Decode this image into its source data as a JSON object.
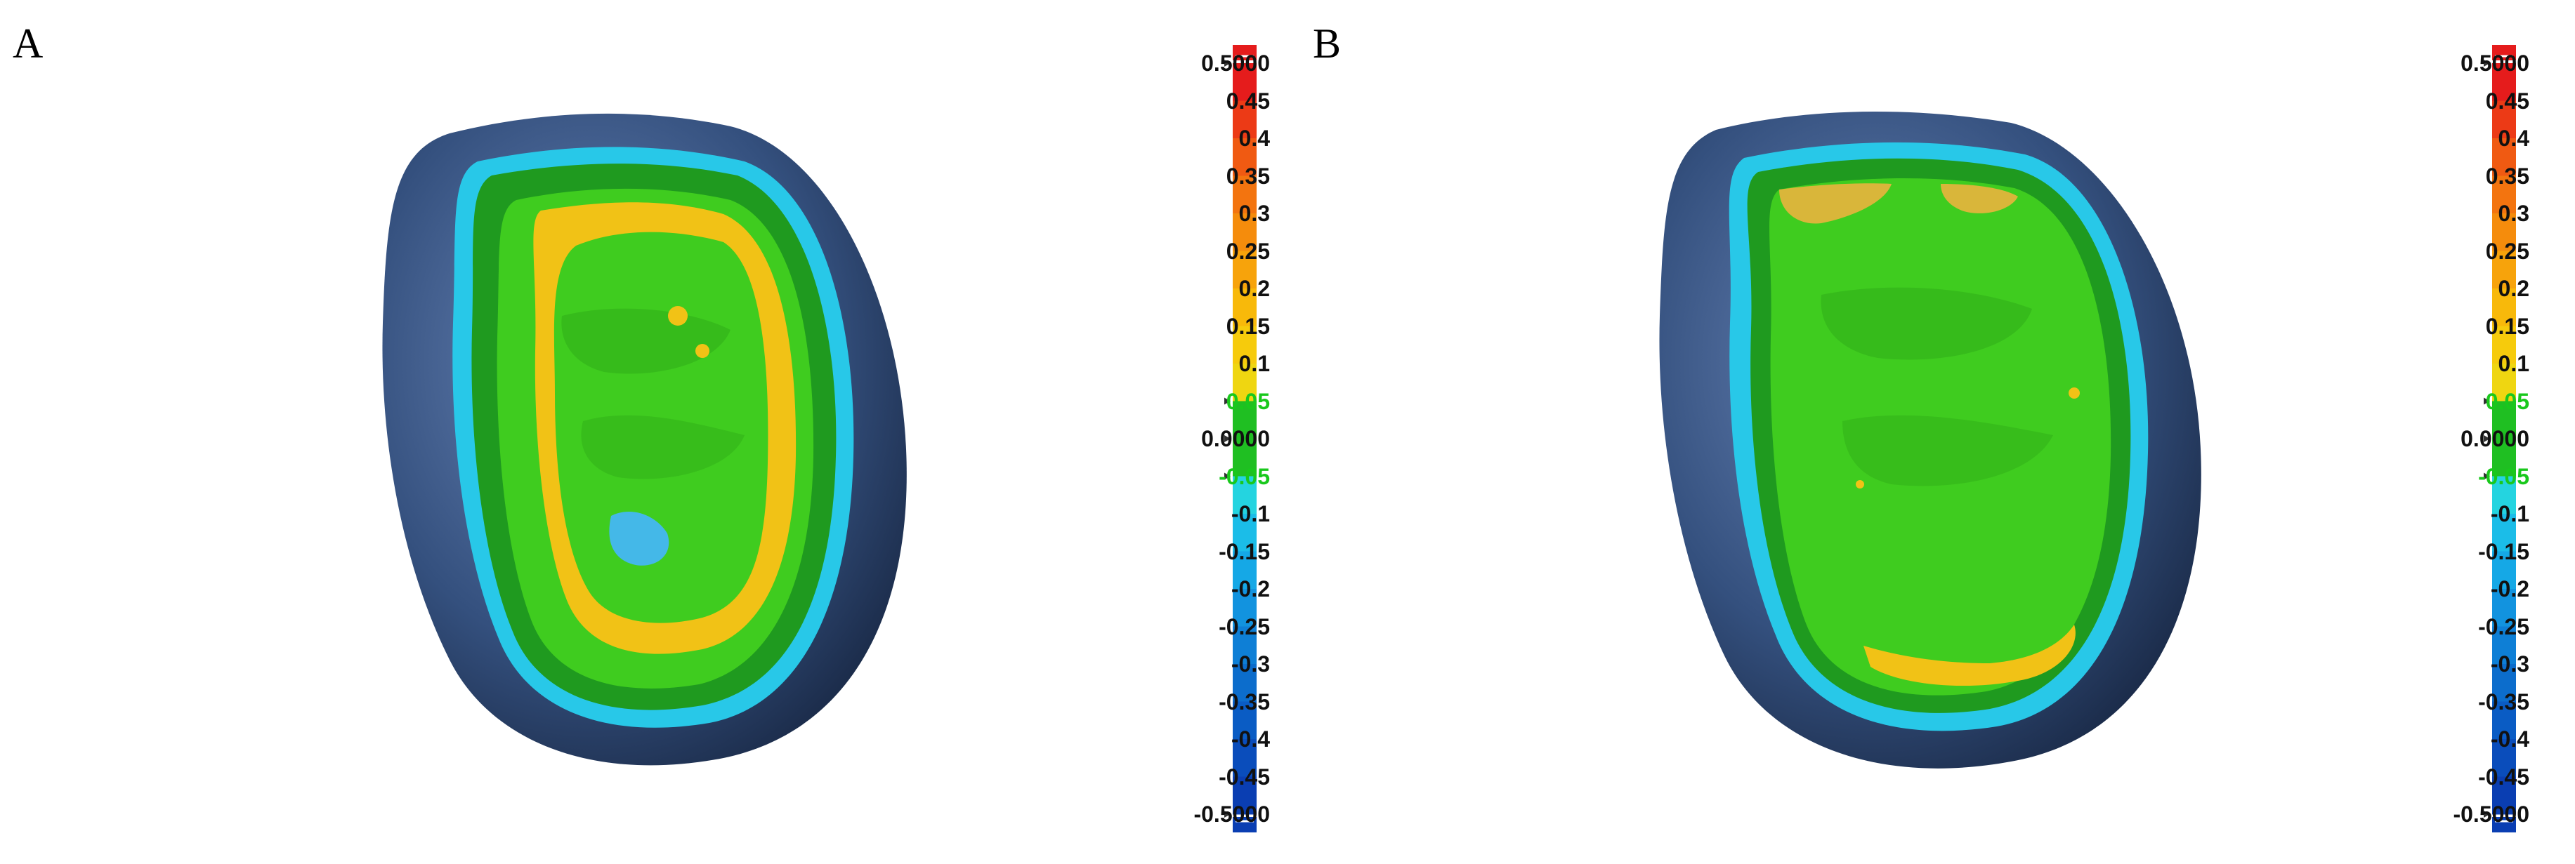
{
  "panels": [
    {
      "label": "A"
    },
    {
      "label": "B"
    }
  ],
  "color_scale": {
    "ticks": [
      "0.5000",
      "0.45",
      "0.4",
      "0.35",
      "0.3",
      "0.25",
      "0.2",
      "0.15",
      "0.1",
      "0.05",
      "0.0000",
      "-0.05",
      "-0.1",
      "-0.15",
      "-0.2",
      "-0.25",
      "-0.3",
      "-0.35",
      "-0.4",
      "-0.45",
      "-0.5000"
    ],
    "highlighted_ticks": [
      "0.05",
      "-0.05"
    ],
    "colors": [
      "#e51c1c",
      "#ec3a16",
      "#f05a12",
      "#f3740f",
      "#f58c0c",
      "#f7a30b",
      "#f8b90a",
      "#f6cb0c",
      "#efd611",
      "#1fbf22",
      "#1fbf22",
      "#24d4e0",
      "#1bbde8",
      "#15a8e6",
      "#1293df",
      "#0e7fd6",
      "#0c6dcc",
      "#0a5cc4",
      "#0a4dbb",
      "#0a3eb2"
    ],
    "highlight_color": "#19c81c"
  }
}
